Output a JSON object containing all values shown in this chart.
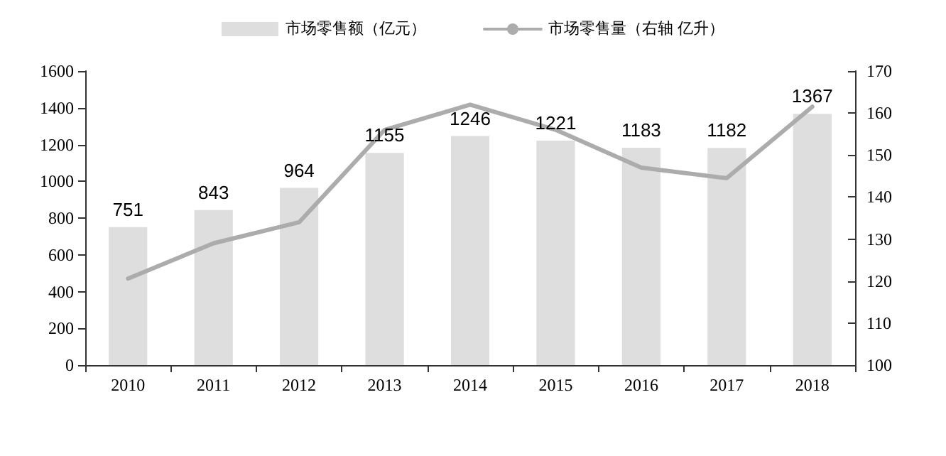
{
  "chart_data": {
    "type": "bar",
    "categories": [
      "2010",
      "2011",
      "2012",
      "2013",
      "2014",
      "2015",
      "2016",
      "2017",
      "2018"
    ],
    "series": [
      {
        "name": "市场零售额（亿元）",
        "type": "bar",
        "color": "#dedede",
        "values": [
          751,
          843,
          964,
          1155,
          1246,
          1221,
          1183,
          1182,
          1367
        ],
        "value_labels": [
          "751",
          "843",
          "964",
          "1155",
          "1246",
          "1221",
          "1183",
          "1182",
          "1367"
        ]
      },
      {
        "name": "市场零售量（右轴 亿升）",
        "type": "line",
        "axis": "y2",
        "color": "#acacac",
        "values": [
          120.6,
          129,
          134,
          156,
          162,
          156,
          147,
          144.5,
          161.5
        ]
      }
    ],
    "ylim": [
      0,
      1600
    ],
    "yticks": [
      0,
      200,
      400,
      600,
      800,
      1000,
      1200,
      1400,
      1600
    ],
    "y2lim": [
      100,
      170
    ],
    "y2ticks": [
      100,
      110,
      120,
      130,
      140,
      150,
      160,
      170
    ],
    "legend": "top",
    "grid": false,
    "marker": "none"
  }
}
